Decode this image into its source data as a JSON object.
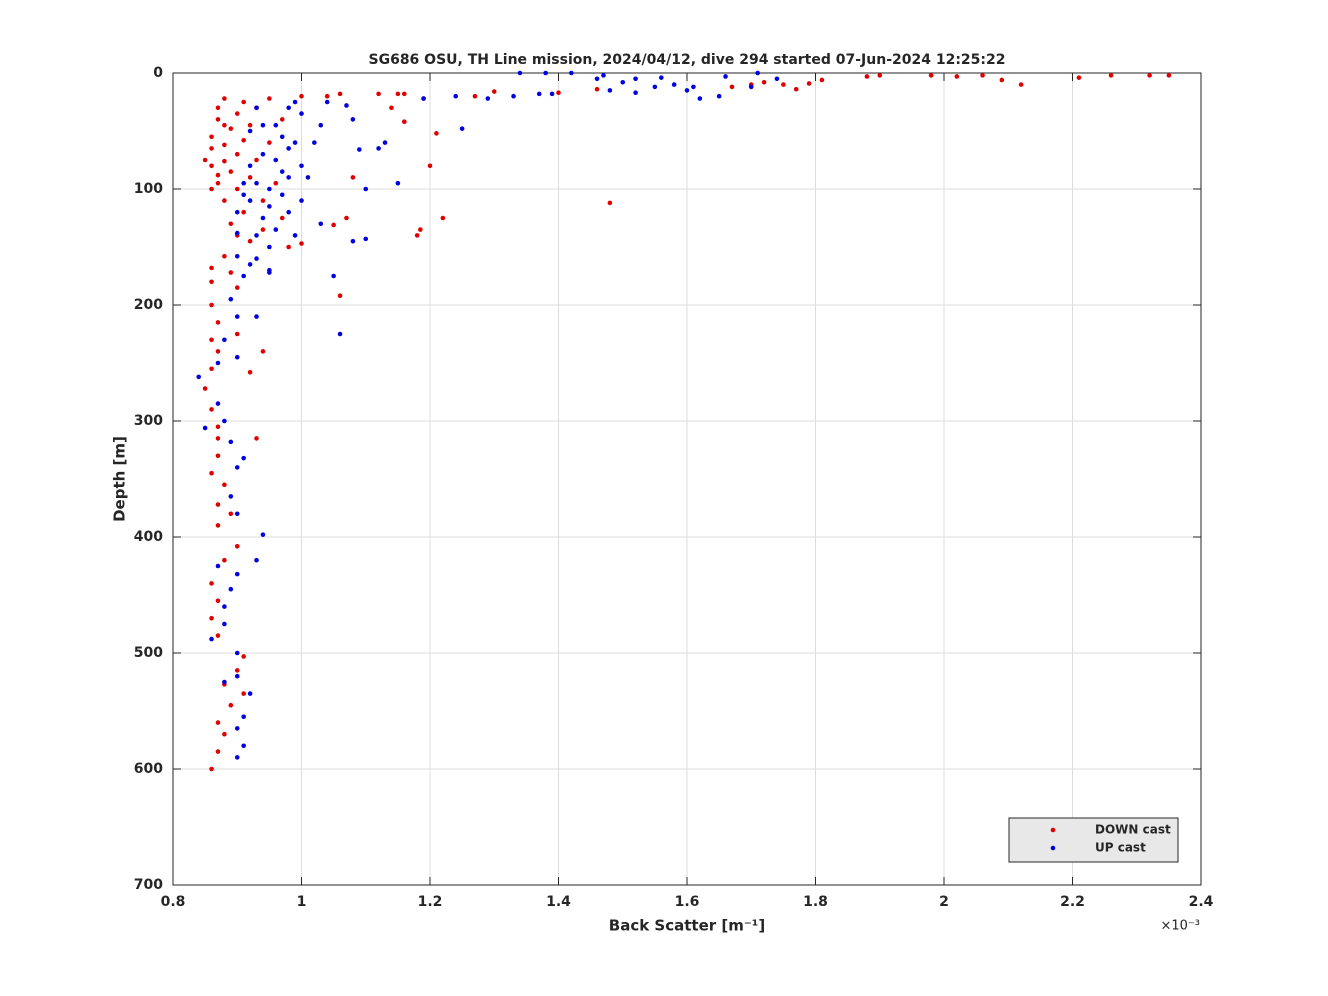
{
  "chart_data": {
    "type": "scatter",
    "title": "SG686 OSU, TH Line mission, 2024/04/12, dive 294 started 07-Jun-2024 12:25:22",
    "x_label": "Back Scatter [m⁻¹]",
    "x_multiplier": "×10⁻³",
    "y_label": "Depth [m]",
    "xlim": [
      0.8,
      2.4
    ],
    "xticks": [
      0.8,
      1,
      1.2,
      1.4,
      1.6,
      1.8,
      2,
      2.2,
      2.4
    ],
    "ylim": [
      0,
      700
    ],
    "yticks": [
      0,
      100,
      200,
      300,
      400,
      500,
      600,
      700
    ],
    "y_reversed": true,
    "grid": true,
    "legend": "bottom-right",
    "series": [
      {
        "name": "DOWN cast",
        "color": "#e00000",
        "x": [
          2.35,
          2.32,
          2.26,
          2.21,
          2.12,
          2.09,
          2.06,
          2.02,
          1.98,
          1.9,
          1.88,
          1.81,
          1.79,
          1.77,
          1.75,
          1.72,
          1.7,
          1.67,
          1.48,
          1.46,
          1.4,
          1.3,
          1.27,
          1.22,
          1.21,
          1.2,
          1.19,
          1.18,
          1.185,
          1.16,
          1.16,
          1.15,
          1.14,
          1.12,
          1.07,
          1.06,
          1.05,
          1.06,
          1.04,
          1.08,
          1.0,
          1.0,
          0.94,
          0.93,
          0.92,
          0.9,
          0.85,
          0.86,
          0.86,
          0.87,
          0.87,
          0.87,
          0.88,
          0.88,
          0.88,
          0.89,
          0.89,
          0.89,
          0.9,
          0.9,
          0.9,
          0.9,
          0.91,
          0.91,
          0.91,
          0.92,
          0.92,
          0.92,
          0.93,
          0.93,
          0.94,
          0.94,
          0.95,
          0.95,
          0.96,
          0.97,
          0.97,
          0.98,
          0.86,
          0.87,
          0.88,
          0.86,
          0.88,
          0.86,
          0.87,
          0.88,
          0.87,
          0.89,
          0.91,
          0.9,
          0.91,
          0.88,
          0.87,
          0.86,
          0.87,
          0.86,
          0.88,
          0.9,
          0.87,
          0.89,
          0.87,
          0.88,
          0.86,
          0.87,
          0.87,
          0.87,
          0.86,
          0.85,
          0.86,
          0.87,
          0.86,
          0.87,
          0.86,
          0.86,
          0.86,
          0.88,
          0.89,
          0.9
        ],
        "values": [
          2,
          2,
          2,
          4,
          10,
          6,
          2,
          3,
          2,
          2,
          3,
          6,
          9,
          14,
          10,
          8,
          10,
          12,
          112,
          14,
          17,
          16,
          20,
          125,
          52,
          80,
          22,
          140,
          135,
          18,
          42,
          18,
          30,
          18,
          125,
          192,
          131,
          18,
          20,
          90,
          20,
          147,
          240,
          315,
          258,
          225,
          75,
          55,
          80,
          40,
          95,
          30,
          62,
          110,
          22,
          48,
          85,
          130,
          35,
          70,
          100,
          140,
          25,
          58,
          120,
          45,
          90,
          145,
          30,
          75,
          110,
          135,
          22,
          60,
          95,
          125,
          40,
          150,
          65,
          88,
          76,
          100,
          45,
          600,
          585,
          570,
          560,
          545,
          535,
          515,
          503,
          527,
          485,
          470,
          455,
          440,
          420,
          408,
          390,
          380,
          372,
          355,
          345,
          330,
          315,
          305,
          290,
          272,
          255,
          240,
          230,
          215,
          200,
          180,
          168,
          158,
          172,
          185
        ]
      },
      {
        "name": "UP cast",
        "color": "#0000e0",
        "x": [
          1.71,
          1.74,
          1.7,
          1.66,
          1.65,
          1.62,
          1.61,
          1.6,
          1.58,
          1.56,
          1.55,
          1.52,
          1.52,
          1.5,
          1.48,
          1.47,
          1.46,
          1.42,
          1.39,
          1.38,
          1.37,
          1.34,
          1.33,
          1.29,
          1.25,
          1.24,
          1.19,
          1.15,
          1.13,
          1.12,
          1.1,
          1.1,
          1.09,
          1.08,
          1.08,
          1.06,
          1.05,
          1.07,
          1.04,
          1.03,
          1.02,
          1.01,
          1.03,
          0.92,
          0.93,
          0.94,
          0.95,
          0.96,
          0.97,
          0.98,
          0.99,
          1.0,
          0.92,
          0.93,
          0.94,
          0.95,
          0.96,
          0.97,
          0.98,
          0.99,
          1.0,
          0.91,
          0.9,
          0.93,
          0.95,
          0.96,
          0.97,
          0.98,
          0.99,
          0.94,
          0.92,
          0.9,
          0.95,
          0.93,
          0.91,
          1.0,
          0.98,
          0.9,
          0.91,
          0.9,
          0.91,
          0.92,
          0.9,
          0.9,
          0.88,
          0.86,
          0.88,
          0.88,
          0.89,
          0.9,
          0.87,
          0.93,
          0.94,
          0.9,
          0.89,
          0.9,
          0.91,
          0.89,
          0.88,
          0.87,
          0.84,
          0.85,
          0.87,
          0.9,
          0.88,
          0.9,
          0.93,
          0.89,
          0.91,
          0.92,
          0.9,
          0.95
        ],
        "values": [
          0,
          5,
          12,
          3,
          20,
          22,
          12,
          15,
          10,
          4,
          12,
          5,
          17,
          8,
          15,
          2,
          5,
          0,
          18,
          0,
          18,
          0,
          20,
          22,
          48,
          20,
          22,
          95,
          60,
          65,
          100,
          143,
          66,
          40,
          145,
          225,
          175,
          28,
          25,
          130,
          60,
          90,
          45,
          50,
          30,
          70,
          100,
          45,
          85,
          120,
          60,
          35,
          110,
          140,
          125,
          150,
          75,
          105,
          30,
          140,
          80,
          95,
          120,
          95,
          115,
          135,
          55,
          90,
          25,
          45,
          80,
          138,
          170,
          160,
          105,
          110,
          65,
          590,
          580,
          565,
          555,
          535,
          520,
          500,
          525,
          488,
          475,
          460,
          445,
          432,
          425,
          420,
          398,
          380,
          365,
          340,
          332,
          318,
          300,
          285,
          262,
          306,
          250,
          245,
          230,
          210,
          210,
          195,
          175,
          165,
          158,
          172
        ]
      }
    ]
  }
}
